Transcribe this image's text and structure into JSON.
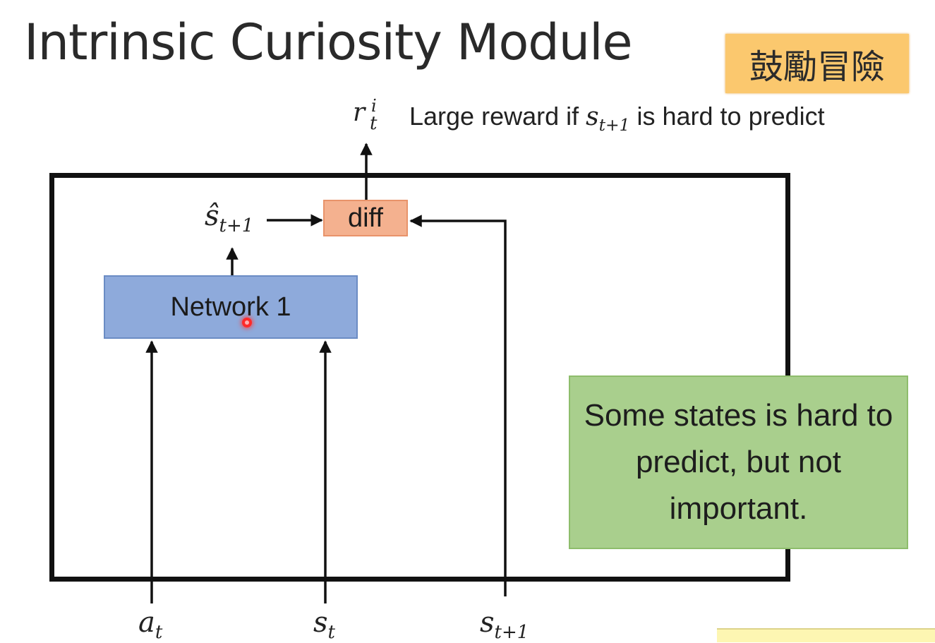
{
  "title": "Intrinsic Curiosity Module",
  "badge": "鼓勵冒險",
  "reward": {
    "symbol": "r",
    "superscript": "i",
    "subscript": "t",
    "text_before": "Large reward if ",
    "state_symbol": "s",
    "state_subscript": "t+1",
    "text_after": " is hard to predict"
  },
  "nodes": {
    "network_label": "Network 1",
    "diff_label": "diff",
    "predicted_state_symbol": "ŝ",
    "predicted_state_subscript": "t+1"
  },
  "inputs": [
    {
      "symbol": "a",
      "subscript": "t"
    },
    {
      "symbol": "s",
      "subscript": "t"
    },
    {
      "symbol": "s",
      "subscript": "t+1"
    }
  ],
  "note": "Some states is hard to predict, but not important.",
  "colors": {
    "badge": "#fbc86e",
    "network": "#8eaadb",
    "diff": "#f4b18f",
    "note": "#a9cf8d",
    "frame": "#111111"
  }
}
